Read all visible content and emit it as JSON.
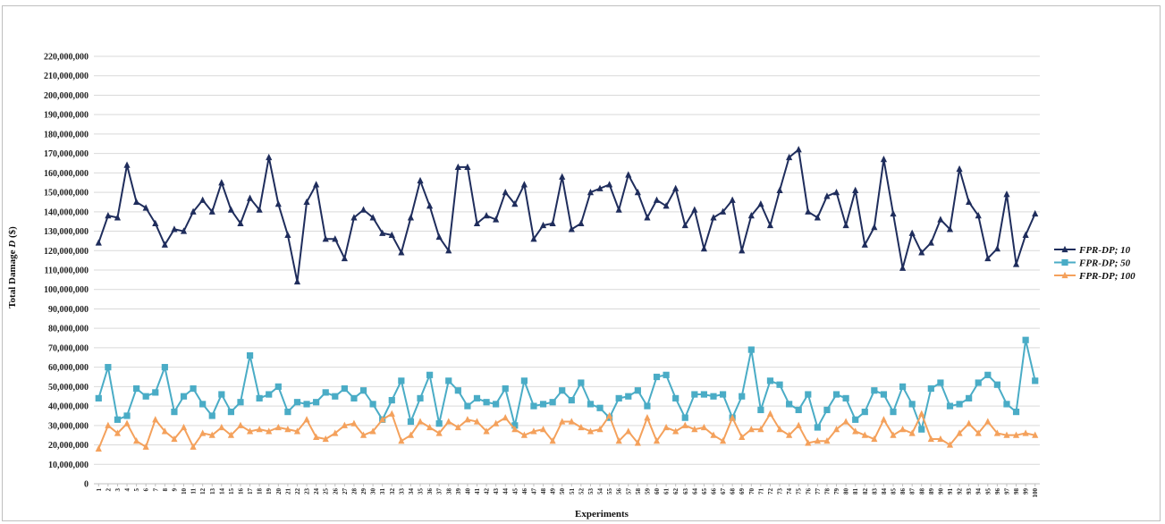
{
  "chart_data": {
    "type": "line",
    "title": "",
    "xlabel": "Experiments",
    "ylabel": "Total Damage D ($)",
    "ylabel_parts": [
      "Total Damage ",
      "D",
      " ($)"
    ],
    "ylim": [
      0,
      220000000
    ],
    "yticks": [
      "0",
      "10,000,000",
      "20,000,000",
      "30,000,000",
      "40,000,000",
      "50,000,000",
      "60,000,000",
      "70,000,000",
      "80,000,000",
      "90,000,000",
      "100,000,000",
      "110,000,000",
      "120,000,000",
      "130,000,000",
      "140,000,000",
      "150,000,000",
      "160,000,000",
      "170,000,000",
      "180,000,000",
      "190,000,000",
      "200,000,000",
      "210,000,000",
      "220,000,000"
    ],
    "grid": "horizontal",
    "legend_position": "right",
    "categories": [
      "1",
      "2",
      "3",
      "4",
      "5",
      "6",
      "7",
      "8",
      "9",
      "10",
      "11",
      "12",
      "13",
      "14",
      "15",
      "16",
      "17",
      "18",
      "19",
      "20",
      "21",
      "22",
      "23",
      "24",
      "25",
      "26",
      "27",
      "28",
      "29",
      "30",
      "31",
      "32",
      "33",
      "34",
      "35",
      "36",
      "37",
      "38",
      "39",
      "40",
      "41",
      "42",
      "43",
      "44",
      "45",
      "46",
      "47",
      "48",
      "49",
      "50",
      "51",
      "52",
      "53",
      "54",
      "55",
      "56",
      "57",
      "58",
      "59",
      "60",
      "61",
      "62",
      "63",
      "64",
      "65",
      "66",
      "67",
      "68",
      "69",
      "70",
      "71",
      "72",
      "73",
      "74",
      "75",
      "76",
      "77",
      "78",
      "79",
      "80",
      "81",
      "82",
      "83",
      "84",
      "85",
      "86",
      "87",
      "88",
      "89",
      "90",
      "91",
      "92",
      "93",
      "94",
      "95",
      "96",
      "97",
      "98",
      "99",
      "100"
    ],
    "series": [
      {
        "name": "FPR-DP; 10",
        "color": "#1f2d5c",
        "marker": "triangle",
        "values": [
          124000000,
          138000000,
          137000000,
          164000000,
          145000000,
          142000000,
          134000000,
          123000000,
          131000000,
          130000000,
          140000000,
          146000000,
          140000000,
          155000000,
          141000000,
          134000000,
          147000000,
          141000000,
          168000000,
          144000000,
          128000000,
          104000000,
          145000000,
          154000000,
          126000000,
          126000000,
          116000000,
          137000000,
          141000000,
          137000000,
          129000000,
          128000000,
          119000000,
          137000000,
          156000000,
          143000000,
          127000000,
          120000000,
          163000000,
          163000000,
          134000000,
          138000000,
          136000000,
          150000000,
          144000000,
          154000000,
          126000000,
          133000000,
          134000000,
          158000000,
          131000000,
          134000000,
          150000000,
          152000000,
          154000000,
          141000000,
          159000000,
          150000000,
          137000000,
          146000000,
          143000000,
          152000000,
          133000000,
          141000000,
          121000000,
          137000000,
          140000000,
          146000000,
          120000000,
          138000000,
          144000000,
          133000000,
          151000000,
          168000000,
          172000000,
          140000000,
          137000000,
          148000000,
          150000000,
          133000000,
          151000000,
          123000000,
          132000000,
          167000000,
          139000000,
          111000000,
          129000000,
          119000000,
          124000000,
          136000000,
          131000000,
          162000000,
          145000000,
          138000000,
          116000000,
          121000000,
          149000000,
          113000000,
          128000000,
          139000000
        ]
      },
      {
        "name": "FPR-DP; 50",
        "color": "#4aacc6",
        "marker": "square",
        "values": [
          44000000,
          60000000,
          33000000,
          35000000,
          49000000,
          45000000,
          47000000,
          60000000,
          37000000,
          45000000,
          49000000,
          41000000,
          35000000,
          46000000,
          37000000,
          42000000,
          66000000,
          44000000,
          46000000,
          50000000,
          37000000,
          42000000,
          41000000,
          42000000,
          47000000,
          45000000,
          49000000,
          44000000,
          48000000,
          41000000,
          33000000,
          43000000,
          53000000,
          32000000,
          44000000,
          56000000,
          31000000,
          53000000,
          48000000,
          40000000,
          44000000,
          42000000,
          41000000,
          49000000,
          30000000,
          53000000,
          40000000,
          41000000,
          42000000,
          48000000,
          43000000,
          52000000,
          41000000,
          39000000,
          34000000,
          44000000,
          45000000,
          48000000,
          40000000,
          55000000,
          56000000,
          44000000,
          34000000,
          46000000,
          46000000,
          45000000,
          46000000,
          34000000,
          45000000,
          69000000,
          38000000,
          53000000,
          51000000,
          41000000,
          38000000,
          46000000,
          29000000,
          38000000,
          46000000,
          44000000,
          33000000,
          37000000,
          48000000,
          46000000,
          37000000,
          50000000,
          41000000,
          28000000,
          49000000,
          52000000,
          40000000,
          41000000,
          44000000,
          52000000,
          56000000,
          51000000,
          41000000,
          37000000,
          74000000,
          53000000
        ]
      },
      {
        "name": "FPR-DP; 100",
        "color": "#f4a15c",
        "marker": "triangle",
        "values": [
          18000000,
          30000000,
          26000000,
          31000000,
          22000000,
          19000000,
          33000000,
          27000000,
          23000000,
          29000000,
          19000000,
          26000000,
          25000000,
          29000000,
          25000000,
          30000000,
          27000000,
          28000000,
          27000000,
          29000000,
          28000000,
          27000000,
          33000000,
          24000000,
          23000000,
          26000000,
          30000000,
          31000000,
          25000000,
          27000000,
          33000000,
          36000000,
          22000000,
          25000000,
          32000000,
          29000000,
          26000000,
          32000000,
          29000000,
          33000000,
          32000000,
          27000000,
          31000000,
          34000000,
          28000000,
          25000000,
          27000000,
          28000000,
          22000000,
          32000000,
          32000000,
          29000000,
          27000000,
          28000000,
          35000000,
          22000000,
          27000000,
          21000000,
          34000000,
          22000000,
          29000000,
          27000000,
          30000000,
          28000000,
          29000000,
          25000000,
          22000000,
          34000000,
          24000000,
          28000000,
          28000000,
          36000000,
          28000000,
          25000000,
          30000000,
          21000000,
          22000000,
          22000000,
          28000000,
          32000000,
          27000000,
          25000000,
          23000000,
          33000000,
          25000000,
          28000000,
          26000000,
          36000000,
          23000000,
          23000000,
          20000000,
          26000000,
          31000000,
          26000000,
          32000000,
          26000000,
          25000000,
          25000000,
          26000000,
          25000000
        ]
      }
    ]
  }
}
